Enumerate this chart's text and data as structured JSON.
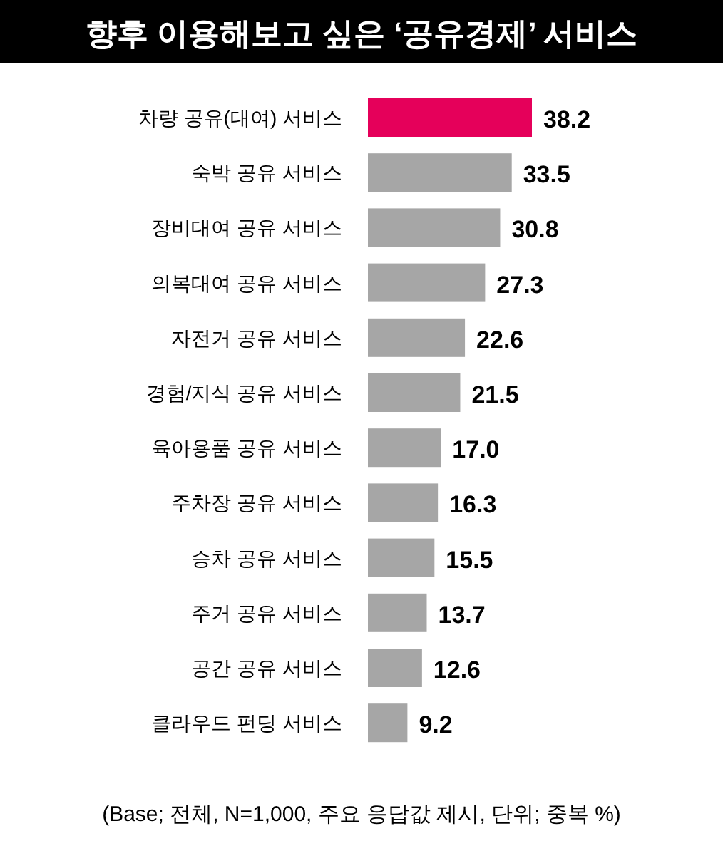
{
  "chart_data": {
    "type": "bar",
    "orientation": "horizontal",
    "title": "향후 이용해보고 싶은 ‘공유경제’ 서비스",
    "categories": [
      "차량 공유(대여) 서비스",
      "숙박 공유 서비스",
      "장비대여 공유 서비스",
      "의복대여 공유 서비스",
      "자전거 공유 서비스",
      "경험/지식 공유 서비스",
      "육아용품 공유 서비스",
      "주차장 공유 서비스",
      "승차 공유 서비스",
      "주거 공유 서비스",
      "공간 공유 서비스",
      "클라우드 펀딩 서비스"
    ],
    "values": [
      38.2,
      33.5,
      30.8,
      27.3,
      22.6,
      21.5,
      17.0,
      16.3,
      15.5,
      13.7,
      12.6,
      9.2
    ],
    "value_labels": [
      "38.2",
      "33.5",
      "30.8",
      "27.3",
      "22.6",
      "21.5",
      "17.0",
      "16.3",
      "15.5",
      "13.7",
      "12.6",
      "9.2"
    ],
    "colors": [
      "#e5005a",
      "#a6a6a6",
      "#a6a6a6",
      "#a6a6a6",
      "#a6a6a6",
      "#a6a6a6",
      "#a6a6a6",
      "#a6a6a6",
      "#a6a6a6",
      "#a6a6a6",
      "#a6a6a6",
      "#a6a6a6"
    ],
    "annotations": [
      "(Base; 전체, N=1,000, 주요 응답값 제시, 단위; 중복 %)"
    ]
  }
}
